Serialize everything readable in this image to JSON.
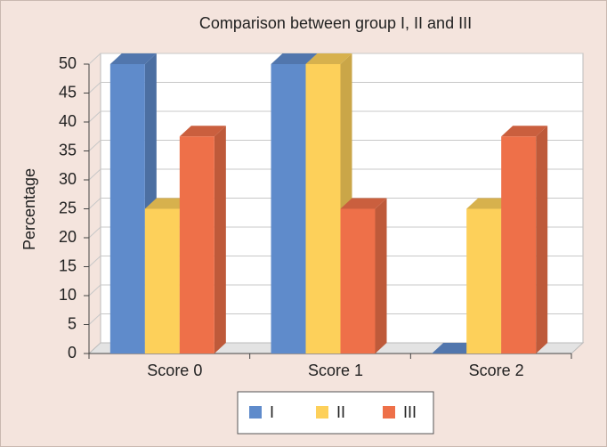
{
  "chart_data": {
    "type": "bar3d",
    "title": "Comparison between group I, II and III",
    "y_label": "Percentage",
    "categories": [
      "Score 0",
      "Score 1",
      "Score 2"
    ],
    "series": [
      {
        "name": "I",
        "color": "#5f8bcb",
        "values": [
          50,
          50,
          0
        ]
      },
      {
        "name": "II",
        "color": "#fdd05a",
        "values": [
          25,
          50,
          25
        ]
      },
      {
        "name": "III",
        "color": "#ee7049",
        "values": [
          37.5,
          25,
          37.5
        ]
      }
    ],
    "ylim": [
      0,
      50
    ],
    "yticks": [
      0,
      5,
      10,
      15,
      20,
      25,
      30,
      35,
      40,
      45,
      50
    ],
    "grid": true
  }
}
